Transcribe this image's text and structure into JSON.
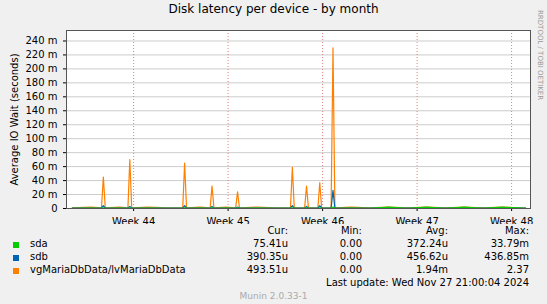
{
  "chart_data": {
    "type": "line",
    "title": "Disk latency per device - by month",
    "y_label": "Average IO Wait (seconds)",
    "x": [
      43.35,
      43.55,
      43.66,
      43.68,
      43.7,
      43.85,
      43.94,
      43.96,
      43.98,
      44.15,
      44.35,
      44.52,
      44.54,
      44.56,
      44.7,
      44.81,
      44.83,
      44.85,
      44.98,
      45.08,
      45.1,
      45.12,
      45.3,
      45.5,
      45.66,
      45.68,
      45.7,
      45.81,
      45.83,
      45.85,
      45.95,
      45.97,
      45.99,
      46.09,
      46.11,
      46.13,
      46.3,
      46.5,
      46.7,
      46.9,
      47.1,
      47.3,
      47.5,
      47.7,
      47.9,
      48.15
    ],
    "xlim": [
      43.29,
      48.2
    ],
    "xticks": [
      {
        "value": 44,
        "label": "Week 44"
      },
      {
        "value": 45,
        "label": "Week 45"
      },
      {
        "value": 46,
        "label": "Week 46"
      },
      {
        "value": 47,
        "label": "Week 47"
      },
      {
        "value": 48,
        "label": "Week 48"
      }
    ],
    "ylim": [
      0,
      0.255
    ],
    "yticks": [
      0,
      {
        "value": 0.02,
        "label": "20 m"
      },
      {
        "value": 0.04,
        "label": "40 m"
      },
      {
        "value": 0.06,
        "label": "60 m"
      },
      {
        "value": 0.08,
        "label": "80 m"
      },
      {
        "value": 0.1,
        "label": "100 m"
      },
      {
        "value": 0.12,
        "label": "120 m"
      },
      {
        "value": 0.14,
        "label": "140 m"
      },
      {
        "value": 0.16,
        "label": "160 m"
      },
      {
        "value": 0.18,
        "label": "180 m"
      },
      {
        "value": 0.2,
        "label": "200 m"
      },
      {
        "value": 0.22,
        "label": "220 m"
      },
      {
        "value": 0.24,
        "label": "240 m"
      }
    ],
    "grid": true,
    "legend": "bottom",
    "stats_columns": [
      "Cur:",
      "Min:",
      "Avg:",
      "Max:"
    ],
    "series": [
      {
        "name": "sda",
        "color": "#00cc00",
        "values": [
          0.0003,
          0.0004,
          0.0003,
          0.001,
          0.0003,
          0.0004,
          0.0003,
          0.001,
          0.0003,
          0.0004,
          0.0003,
          0.0003,
          0.001,
          0.0003,
          0.0004,
          0.0003,
          0.001,
          0.0003,
          0.0004,
          0.0003,
          0.001,
          0.0003,
          0.0004,
          0.0003,
          0.0003,
          0.001,
          0.0003,
          0.0003,
          0.001,
          0.0003,
          0.0003,
          0.001,
          0.0003,
          0.0003,
          0.002,
          0.0003,
          0.0004,
          0.0003,
          0.002,
          0.0003,
          0.002,
          0.0003,
          0.002,
          0.0003,
          0.002,
          0.0001
        ],
        "stats": [
          {
            "value": 7.541e-05,
            "label": "75.41u"
          },
          {
            "value": 0,
            "label": "0.00"
          },
          {
            "value": 0.00037224,
            "label": "372.24u"
          },
          {
            "value": 0.03379,
            "label": "33.79m"
          }
        ]
      },
      {
        "name": "sdb",
        "color": "#0066b3",
        "values": [
          0.0004,
          0.0005,
          0.0004,
          0.004,
          0.0004,
          0.0005,
          0.0004,
          0.003,
          0.0004,
          0.0005,
          0.0004,
          0.0004,
          0.004,
          0.0004,
          0.0005,
          0.0004,
          0.003,
          0.0004,
          0.0005,
          0.0004,
          0.002,
          0.0004,
          0.0005,
          0.0004,
          0.0004,
          0.004,
          0.0004,
          0.0004,
          0.003,
          0.0004,
          0.0004,
          0.004,
          0.0004,
          0.0004,
          0.026,
          0.0004,
          0.0005,
          0.0004,
          0.0005,
          0.0004,
          0.0005,
          0.0004,
          0.0005,
          0.0004,
          0.0005,
          0.0004
        ],
        "stats": [
          {
            "value": 0.00039035,
            "label": "390.35u"
          },
          {
            "value": 0,
            "label": "0.00"
          },
          {
            "value": 0.00045662,
            "label": "456.62u"
          },
          {
            "value": 0.43685,
            "label": "436.85m"
          }
        ]
      },
      {
        "name": "vgMariaDbData/lvMariaDbData",
        "color": "#ff8000",
        "values": [
          0.001,
          0.002,
          0.001,
          0.045,
          0.001,
          0.002,
          0.001,
          0.07,
          0.001,
          0.002,
          0.001,
          0.001,
          0.065,
          0.001,
          0.002,
          0.001,
          0.032,
          0.001,
          0.002,
          0.001,
          0.024,
          0.001,
          0.002,
          0.001,
          0.001,
          0.059,
          0.001,
          0.001,
          0.032,
          0.001,
          0.001,
          0.037,
          0.001,
          0.001,
          0.23,
          0.001,
          0.002,
          0.001,
          0.002,
          0.001,
          0.002,
          0.001,
          0.002,
          0.001,
          0.002,
          0.0005
        ],
        "stats": [
          {
            "value": 0.00049351,
            "label": "493.51u"
          },
          {
            "value": 0,
            "label": "0.00"
          },
          {
            "value": 0.00194,
            "label": "1.94m"
          },
          {
            "value": 2.37,
            "label": "2.37"
          }
        ]
      }
    ],
    "last_update": "Last update: Wed Nov 27 21:00:04 2024",
    "footer": "Munin 2.0.33-1",
    "watermark": "RRDTOOL / TOBI OETIKER"
  }
}
